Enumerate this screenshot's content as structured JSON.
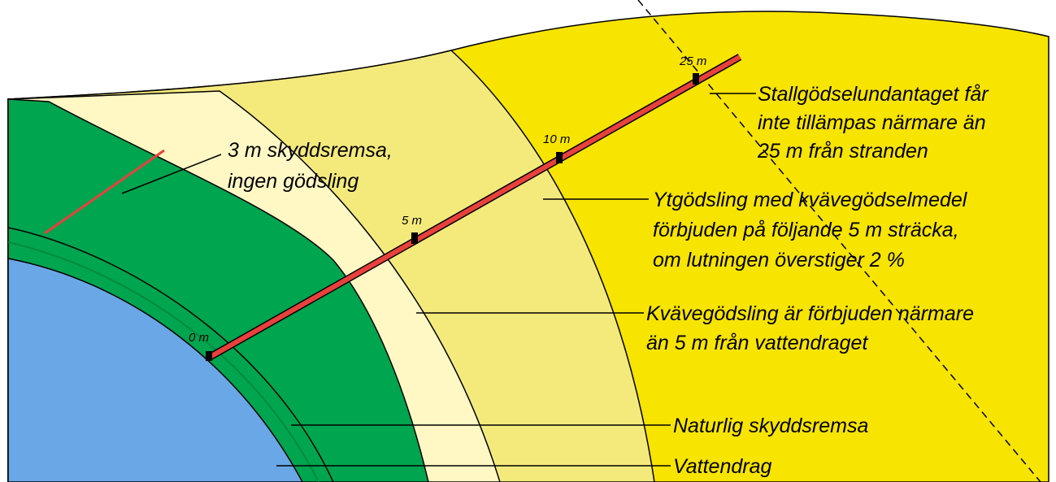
{
  "markers": [
    "0 m",
    "5 m",
    "10 m",
    "25 m"
  ],
  "annotations": {
    "protective_strip": [
      "3 m skyddsremsa,",
      "ingen gödsling"
    ],
    "manure_exception": [
      "Stallgödselundantaget får",
      "inte tillämpas närmare än",
      "25 m från stranden"
    ],
    "surface_fertilization": [
      "Ytgödsling med kvävegödselmedel",
      "förbjuden på följande 5 m sträcka,",
      "om lutningen överstiger 2 %"
    ],
    "nitrogen_ban": [
      "Kvävegödsling är förbjuden närmare",
      "än 5 m från vattendraget"
    ],
    "natural_strip": [
      "Naturlig skyddsremsa"
    ],
    "watercourse": [
      "Vattendrag"
    ]
  }
}
